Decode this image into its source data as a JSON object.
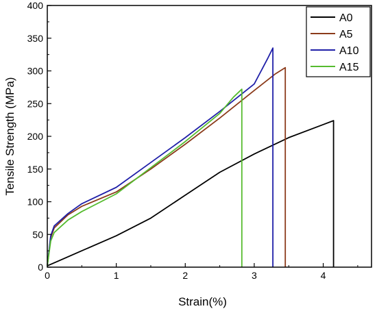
{
  "chart_data": {
    "type": "line",
    "xlabel": "Strain(%)",
    "ylabel": "Tensile Strength (MPa)",
    "xlim": [
      0,
      4.7
    ],
    "ylim": [
      0,
      400
    ],
    "xticks": [
      0,
      1,
      2,
      3,
      4
    ],
    "yticks": [
      0,
      50,
      100,
      150,
      200,
      250,
      300,
      350,
      400
    ],
    "grid": false,
    "legend_position": "top-right",
    "series": [
      {
        "name": "A0",
        "color": "#000000",
        "points": [
          [
            0,
            2
          ],
          [
            0.5,
            25
          ],
          [
            1.0,
            48
          ],
          [
            1.5,
            75
          ],
          [
            2.0,
            110
          ],
          [
            2.5,
            145
          ],
          [
            3.0,
            173
          ],
          [
            3.5,
            198
          ],
          [
            4.0,
            218
          ],
          [
            4.15,
            224
          ],
          [
            4.15,
            0
          ]
        ]
      },
      {
        "name": "A5",
        "color": "#8B3A1A",
        "points": [
          [
            0,
            2
          ],
          [
            0.05,
            45
          ],
          [
            0.1,
            60
          ],
          [
            0.3,
            80
          ],
          [
            0.5,
            93
          ],
          [
            1.0,
            115
          ],
          [
            1.5,
            150
          ],
          [
            2.0,
            188
          ],
          [
            2.5,
            228
          ],
          [
            3.0,
            270
          ],
          [
            3.3,
            295
          ],
          [
            3.45,
            305
          ],
          [
            3.45,
            0
          ]
        ]
      },
      {
        "name": "A10",
        "color": "#1F1FA8",
        "points": [
          [
            0,
            2
          ],
          [
            0.05,
            48
          ],
          [
            0.1,
            63
          ],
          [
            0.3,
            82
          ],
          [
            0.5,
            97
          ],
          [
            1.0,
            122
          ],
          [
            1.5,
            160
          ],
          [
            2.0,
            198
          ],
          [
            2.5,
            238
          ],
          [
            3.0,
            280
          ],
          [
            3.2,
            320
          ],
          [
            3.27,
            335
          ],
          [
            3.27,
            0
          ]
        ]
      },
      {
        "name": "A15",
        "color": "#55BB2E",
        "points": [
          [
            0,
            2
          ],
          [
            0.05,
            40
          ],
          [
            0.1,
            53
          ],
          [
            0.3,
            72
          ],
          [
            0.5,
            85
          ],
          [
            1.0,
            112
          ],
          [
            1.5,
            152
          ],
          [
            2.0,
            192
          ],
          [
            2.5,
            235
          ],
          [
            2.7,
            260
          ],
          [
            2.82,
            272
          ],
          [
            2.82,
            0
          ]
        ]
      }
    ]
  }
}
